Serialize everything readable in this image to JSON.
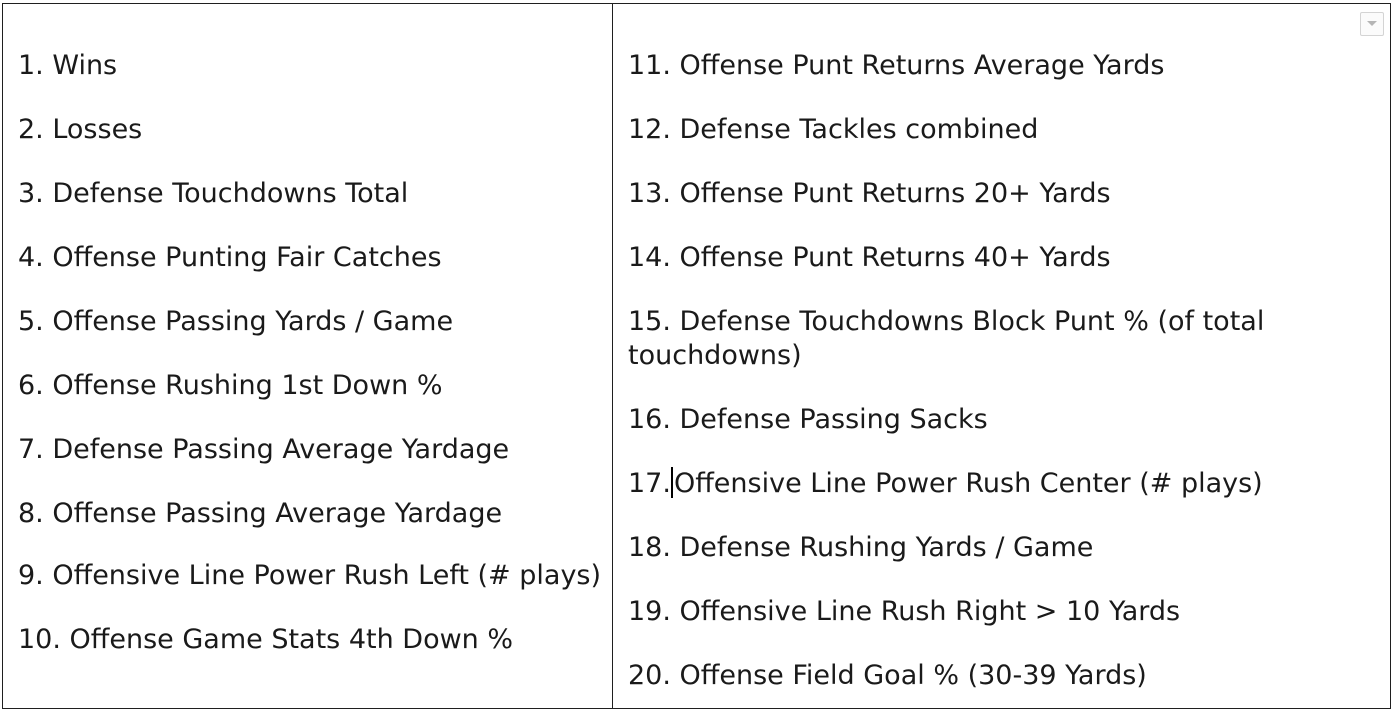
{
  "left_column": [
    "1. Wins",
    "2. Losses",
    "3. Defense Touchdowns Total",
    "4. Offense Punting Fair Catches",
    "5. Offense Passing Yards / Game",
    "6. Offense Rushing 1st Down %",
    "7. Defense Passing Average Yardage",
    "8. Offense Passing Average Yardage",
    "9. Offensive Line Power Rush Left (# plays)",
    "10. Offense Game Stats 4th Down %"
  ],
  "right_column": [
    "11. Offense Punt Returns Average Yards",
    "12. Defense Tackles combined",
    "13. Offense Punt Returns 20+ Yards",
    "14. Offense Punt Returns 40+ Yards",
    "15. Defense Touchdowns Block Punt % (of total touchdowns)",
    "16. Defense Passing Sacks",
    "17.",
    "18. Defense Rushing Yards / Game",
    "19. Offensive Line Rush Right > 10 Yards",
    "20. Offense Field Goal % (30-39 Yards)"
  ],
  "item_17_text": "Offensive Line Power Rush Center (# plays)",
  "icons": {
    "dropdown": "chevron-down-icon"
  }
}
